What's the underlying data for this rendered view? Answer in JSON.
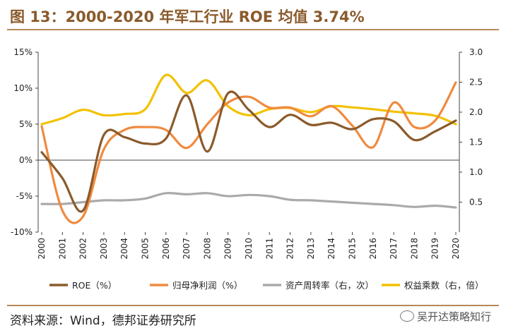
{
  "header": {
    "title": "图 13：2000-2020 年军工行业 ROE 均值 3.74%"
  },
  "footer": {
    "source": "资料来源：Wind，德邦证券研究所",
    "watermark": "吴开达策略知行"
  },
  "chart_data": {
    "type": "line",
    "title": "图 13：2000-2020 年军工行业 ROE 均值 3.74%",
    "categories": [
      "2000",
      "2001",
      "2002",
      "2003",
      "2004",
      "2005",
      "2006",
      "2007",
      "2008",
      "2009",
      "2010",
      "2011",
      "2012",
      "2013",
      "2014",
      "2015",
      "2016",
      "2017",
      "2018",
      "2019",
      "2020"
    ],
    "left_axis": {
      "min": -10,
      "max": 15,
      "ticks": [
        -10,
        -5,
        0,
        5,
        10,
        15
      ],
      "tick_labels": [
        "-10%",
        "-5%",
        "0%",
        "5%",
        "10%",
        "15%"
      ]
    },
    "right_axis": {
      "min": 0,
      "max": 3.0,
      "ticks": [
        0.5,
        1.0,
        1.5,
        2.0,
        2.5,
        3.0
      ],
      "tick_labels": [
        "0.5",
        "1.0",
        "1.5",
        "2.0",
        "2.5",
        "3.0"
      ]
    },
    "series": [
      {
        "name": "ROE（%）",
        "axis": "left",
        "color": "#8b5a2b",
        "values": [
          1.1,
          -2.5,
          -7.0,
          3.5,
          3.2,
          2.3,
          3.0,
          9.0,
          1.2,
          9.3,
          7.0,
          4.6,
          6.3,
          4.9,
          5.2,
          4.3,
          5.7,
          5.4,
          2.8,
          4.0,
          5.5
        ]
      },
      {
        "name": "归母净利润（%）",
        "axis": "left",
        "color": "#f08a3e",
        "values": [
          4.7,
          -7.0,
          -7.8,
          1.5,
          4.2,
          4.6,
          4.2,
          1.7,
          5.0,
          8.0,
          8.8,
          7.3,
          7.3,
          6.1,
          7.5,
          4.8,
          1.8,
          8.0,
          4.6,
          5.5,
          10.8
        ]
      },
      {
        "name": "资产周转率（右，次）",
        "axis": "right",
        "color": "#aaaaaa",
        "values": [
          0.47,
          0.47,
          0.5,
          0.53,
          0.53,
          0.56,
          0.65,
          0.63,
          0.65,
          0.6,
          0.62,
          0.6,
          0.54,
          0.53,
          0.51,
          0.49,
          0.47,
          0.45,
          0.42,
          0.44,
          0.41
        ]
      },
      {
        "name": "权益乘数（右，倍）",
        "axis": "right",
        "color": "#f2c100",
        "values": [
          1.8,
          1.9,
          2.04,
          1.95,
          1.97,
          2.05,
          2.62,
          2.32,
          2.53,
          2.1,
          1.95,
          2.05,
          2.07,
          2.0,
          2.1,
          2.08,
          2.05,
          2.01,
          1.98,
          1.94,
          1.8
        ]
      }
    ]
  }
}
